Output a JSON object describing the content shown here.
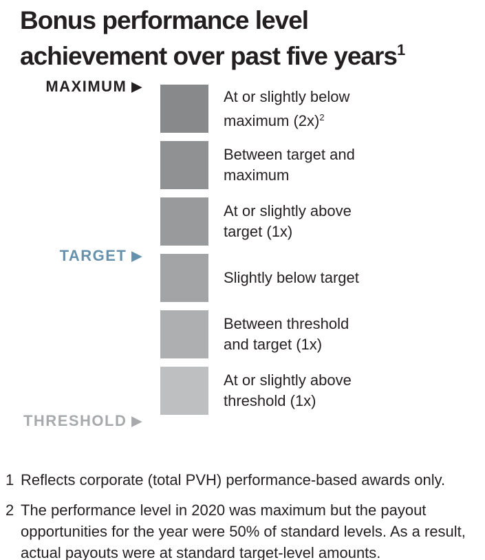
{
  "title": {
    "line1": "Bonus performance level",
    "line2": "achievement over past five years",
    "sup": "1"
  },
  "axis": {
    "maximum": {
      "label": "MAXIMUM",
      "arrow": "▶",
      "color": "#231f20"
    },
    "target": {
      "label": "TARGET",
      "arrow": "▶",
      "color": "#6591ac"
    },
    "threshold": {
      "label": "THRESHOLD",
      "arrow": "▶",
      "color": "#a7a9ac"
    }
  },
  "chart_data": {
    "type": "table",
    "title": "Bonus performance level achievement over past five years",
    "description": "Vertical qualitative scale of bonus performance level achievement; six shaded squares ordered from maximum (darkest, top) to threshold (lightest, bottom)",
    "scale_markers": [
      "MAXIMUM",
      "TARGET",
      "THRESHOLD"
    ],
    "levels": [
      {
        "line1": "At or slightly below",
        "line2": "maximum (2x)",
        "sup": "2",
        "color": "#87898b"
      },
      {
        "line1": "Between target and",
        "line2": "maximum",
        "sup": "",
        "color": "#8f9193"
      },
      {
        "line1": "At or slightly above",
        "line2": "target (1x)",
        "sup": "",
        "color": "#989a9c"
      },
      {
        "line1": "Slightly below target",
        "line2": "",
        "sup": "",
        "color": "#a2a4a6"
      },
      {
        "line1": "Between threshold",
        "line2": "and target (1x)",
        "sup": "",
        "color": "#adafb1"
      },
      {
        "line1": "At or slightly above",
        "line2": "threshold (1x)",
        "sup": "",
        "color": "#bdbfc1"
      }
    ]
  },
  "footnotes": [
    {
      "num": "1",
      "text": "Reflects corporate (total PVH) performance-based awards only."
    },
    {
      "num": "2",
      "text": "The performance level in 2020 was maximum but the payout opportunities for the year were 50% of standard levels. As a result, actual payouts were at standard target-level amounts."
    }
  ]
}
